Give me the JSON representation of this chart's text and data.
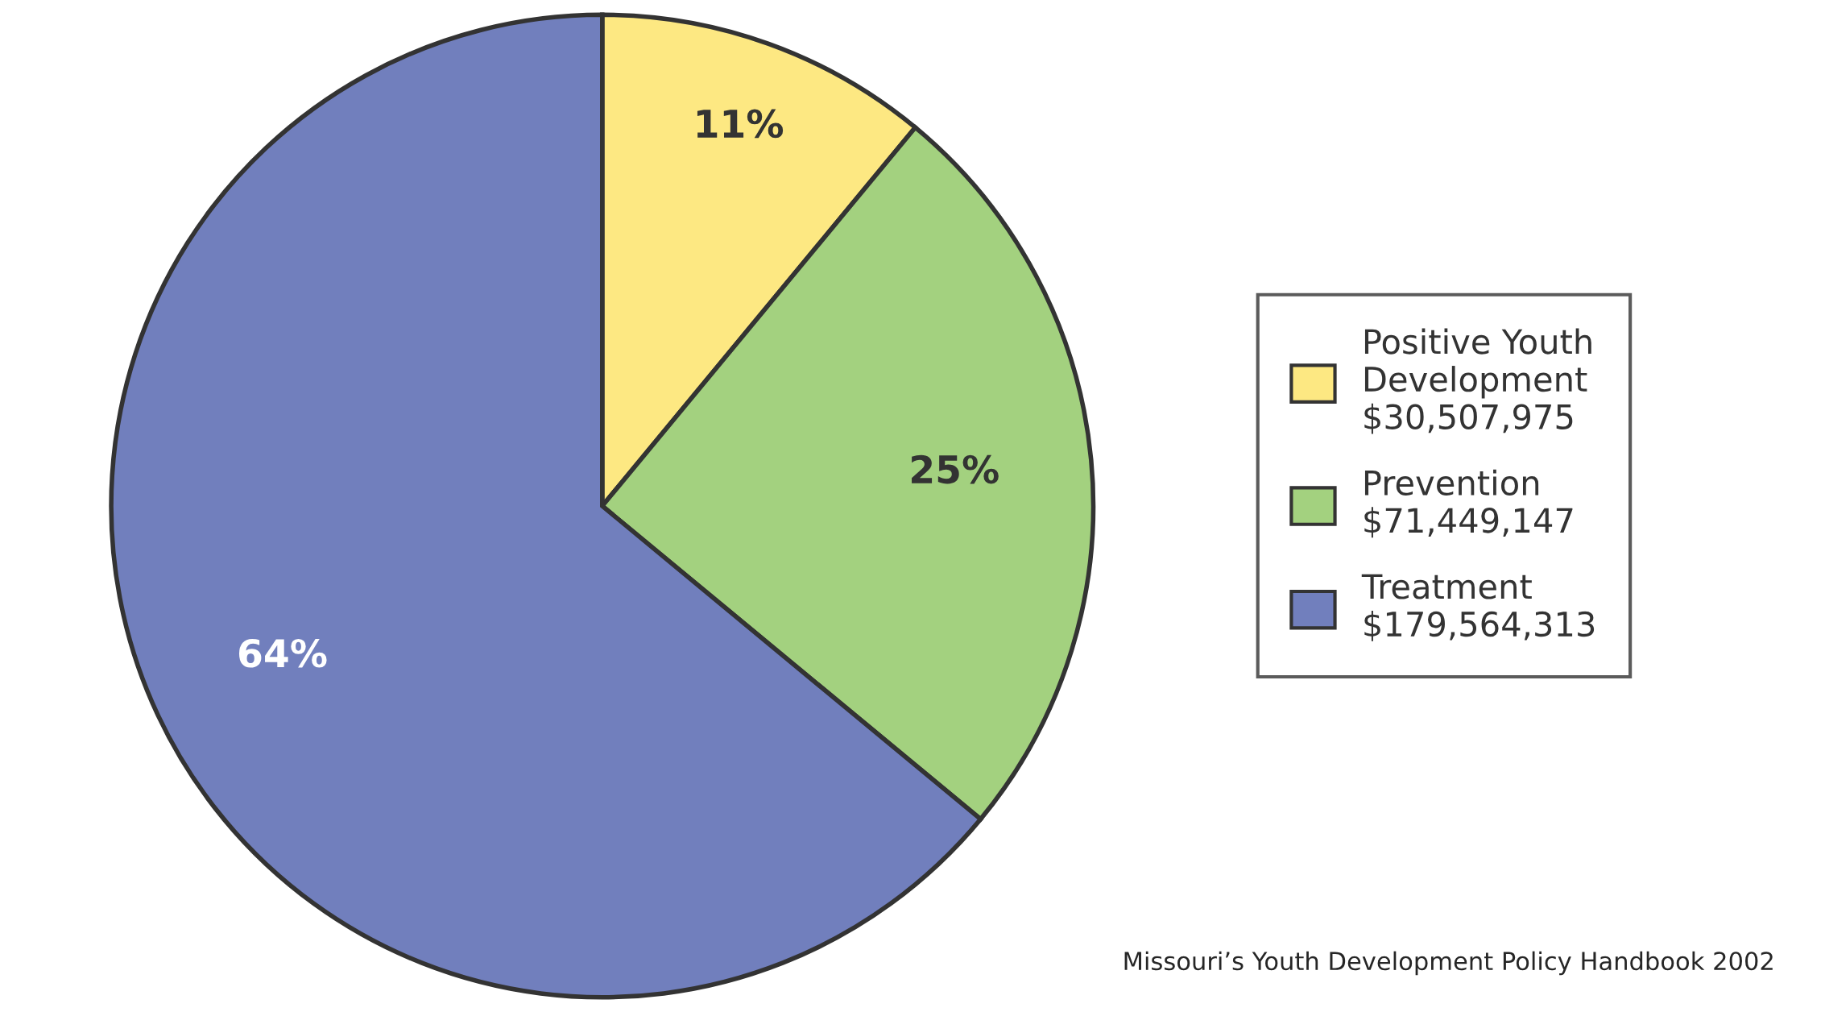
{
  "chart_data": {
    "type": "pie",
    "categories": [
      "Positive Youth\nDevelopment\n$30,507,975",
      "Prevention\n$71,449,147",
      "Treatment\n$179,564,313"
    ],
    "values": [
      11,
      25,
      64
    ],
    "colors": [
      "#fde882",
      "#a3d17f",
      "#717fbd"
    ],
    "value_labels": [
      "11%",
      "25%",
      "64%"
    ],
    "legend": "right",
    "annotations": [
      "Missouri’s Youth Development Policy Handbook 2002"
    ]
  }
}
